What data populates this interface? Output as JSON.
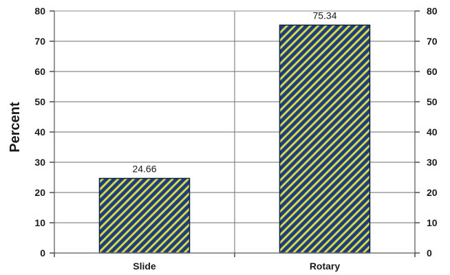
{
  "chart_data": {
    "type": "bar",
    "categories": [
      "Slide",
      "Rotary"
    ],
    "values": [
      24.66,
      75.34
    ],
    "data_labels": [
      "24.66",
      "75.34"
    ],
    "ylabel": "Percent",
    "ylim": [
      0,
      80
    ],
    "yticks": [
      0,
      10,
      20,
      30,
      40,
      50,
      60,
      70,
      80
    ],
    "secondary_y_axis": true,
    "grid": true,
    "legend": "none",
    "bar_fill": "#1f3f7a",
    "bar_hatch": "#d6d84a",
    "bar_border": "#0e1f46",
    "axis_color": "#4a4a4a"
  }
}
